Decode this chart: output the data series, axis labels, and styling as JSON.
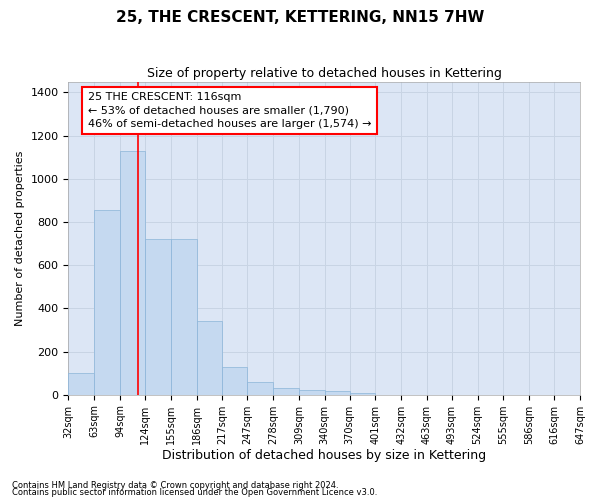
{
  "title": "25, THE CRESCENT, KETTERING, NN15 7HW",
  "subtitle": "Size of property relative to detached houses in Kettering",
  "xlabel": "Distribution of detached houses by size in Kettering",
  "ylabel": "Number of detached properties",
  "bar_values": [
    100,
    855,
    1130,
    720,
    720,
    340,
    130,
    60,
    30,
    20,
    15,
    10,
    0,
    0,
    0,
    0,
    0,
    0,
    0,
    0
  ],
  "bin_edges": [
    32,
    63,
    94,
    124,
    155,
    186,
    217,
    247,
    278,
    309,
    340,
    370,
    401,
    432,
    463,
    493,
    524,
    555,
    586,
    616,
    647
  ],
  "tick_labels": [
    "32sqm",
    "63sqm",
    "94sqm",
    "124sqm",
    "155sqm",
    "186sqm",
    "217sqm",
    "247sqm",
    "278sqm",
    "309sqm",
    "340sqm",
    "370sqm",
    "401sqm",
    "432sqm",
    "463sqm",
    "493sqm",
    "524sqm",
    "555sqm",
    "586sqm",
    "616sqm",
    "647sqm"
  ],
  "bar_color": "#c5d9f0",
  "bar_edge_color": "#8ab4d8",
  "grid_color": "#c8d4e4",
  "background_color": "#dce6f5",
  "red_line_x": 116,
  "annotation_title": "25 THE CRESCENT: 116sqm",
  "annotation_line1": "← 53% of detached houses are smaller (1,790)",
  "annotation_line2": "46% of semi-detached houses are larger (1,574) →",
  "ylim": [
    0,
    1450
  ],
  "yticks": [
    0,
    200,
    400,
    600,
    800,
    1000,
    1200,
    1400
  ],
  "footnote1": "Contains HM Land Registry data © Crown copyright and database right 2024.",
  "footnote2": "Contains public sector information licensed under the Open Government Licence v3.0.",
  "title_fontsize": 11,
  "subtitle_fontsize": 9,
  "xlabel_fontsize": 9,
  "ylabel_fontsize": 8,
  "tick_fontsize": 7,
  "ytick_fontsize": 8,
  "annotation_fontsize": 8,
  "footnote_fontsize": 6
}
